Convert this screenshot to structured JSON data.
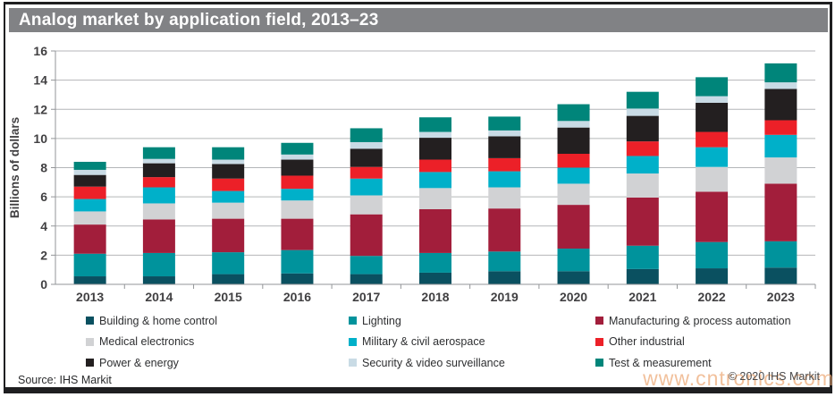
{
  "title": "Analog market by application field, 2013–23",
  "source": "Source: IHS Markit",
  "copyright": "© 2020 IHS Markit",
  "watermark": "www.cntronics.com",
  "colors": {
    "title_bar_bg": "#818285",
    "title_text": "#ffffff",
    "frame": "#1f1f21",
    "grid": "#b4b6b8",
    "axis_line": "#939598",
    "axis_text": "#414042",
    "watermark": "#eda876"
  },
  "chart_data": {
    "type": "bar",
    "stacked": true,
    "title": "Analog market by application field, 2013–23",
    "xlabel": "",
    "ylabel": "Billions of dollars",
    "ylim": [
      0,
      16
    ],
    "ytick_step": 2,
    "grid": true,
    "legend_position": "bottom",
    "categories": [
      "2013",
      "2014",
      "2015",
      "2016",
      "2017",
      "2018",
      "2019",
      "2020",
      "2021",
      "2022",
      "2023"
    ],
    "series": [
      {
        "name": "Building & home control",
        "color": "#0a5060",
        "values": [
          0.55,
          0.55,
          0.7,
          0.75,
          0.7,
          0.8,
          0.9,
          0.9,
          1.05,
          1.1,
          1.15
        ]
      },
      {
        "name": "Lighting",
        "color": "#00939c",
        "values": [
          1.55,
          1.6,
          1.5,
          1.6,
          1.25,
          1.35,
          1.35,
          1.55,
          1.6,
          1.8,
          1.8
        ]
      },
      {
        "name": "Manufacturing & process automation",
        "color": "#a21e3b",
        "values": [
          2.0,
          2.3,
          2.3,
          2.15,
          2.85,
          3.0,
          2.95,
          3.0,
          3.3,
          3.45,
          3.95
        ]
      },
      {
        "name": "Medical electronics",
        "color": "#d1d2d4",
        "values": [
          0.9,
          1.1,
          1.1,
          1.25,
          1.3,
          1.45,
          1.45,
          1.45,
          1.65,
          1.7,
          1.8
        ]
      },
      {
        "name": "Military & civil aerospace",
        "color": "#00b0c9",
        "values": [
          0.85,
          1.1,
          0.8,
          0.8,
          1.15,
          1.1,
          1.1,
          1.1,
          1.2,
          1.35,
          1.55
        ]
      },
      {
        "name": "Other industrial",
        "color": "#ec2028",
        "values": [
          0.85,
          0.7,
          0.85,
          0.9,
          0.8,
          0.85,
          0.9,
          0.95,
          1.0,
          1.05,
          1.0
        ]
      },
      {
        "name": "Power & energy",
        "color": "#231f20",
        "values": [
          0.8,
          0.95,
          1.0,
          1.1,
          1.25,
          1.5,
          1.5,
          1.8,
          1.75,
          2.0,
          2.15
        ]
      },
      {
        "name": "Security & video surveillance",
        "color": "#c9dbe5",
        "values": [
          0.35,
          0.3,
          0.3,
          0.35,
          0.45,
          0.4,
          0.4,
          0.45,
          0.5,
          0.45,
          0.45
        ]
      },
      {
        "name": "Test & measurement",
        "color": "#00857a",
        "values": [
          0.55,
          0.8,
          0.85,
          0.8,
          0.95,
          1.0,
          0.95,
          1.15,
          1.15,
          1.3,
          1.3
        ]
      }
    ]
  }
}
